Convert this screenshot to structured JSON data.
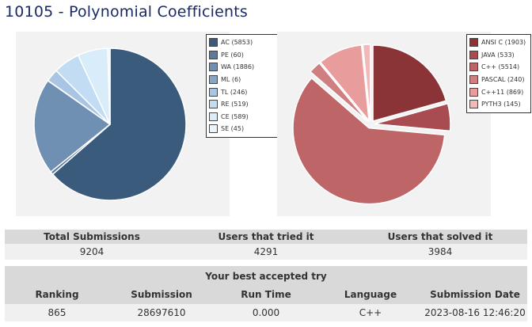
{
  "problem": {
    "title": "10105 - Polynomial Coefficients"
  },
  "chart_data": [
    {
      "type": "pie",
      "categories": [
        "AC (5853)",
        "PE (60)",
        "WA (1886)",
        "ML (6)",
        "TL (246)",
        "RE (519)",
        "CE (589)",
        "SE (45)"
      ],
      "values": [
        5853,
        60,
        1886,
        6,
        246,
        519,
        589,
        45
      ],
      "colors": [
        "#3b5b7d",
        "#5a7a9c",
        "#6f90b2",
        "#88a6c4",
        "#a8c6e4",
        "#c2dcf4",
        "#d8ecfa",
        "#eaf6fc"
      ],
      "legend": "right"
    },
    {
      "type": "pie",
      "categories": [
        "ANSI C (1903)",
        "JAVA (533)",
        "C++ (5514)",
        "PASCAL (240)",
        "C++11 (869)",
        "PYTH3 (145)"
      ],
      "values": [
        1903,
        533,
        5514,
        240,
        869,
        145
      ],
      "colors": [
        "#8b3438",
        "#a84c51",
        "#bd6567",
        "#d07f80",
        "#e89c9c",
        "#f2b9b9"
      ],
      "legend": "right"
    }
  ],
  "stats": {
    "headers": [
      "Total Submissions",
      "Users that tried it",
      "Users that solved it"
    ],
    "values": [
      "9204",
      "4291",
      "3984"
    ]
  },
  "best": {
    "title": "Your best accepted try",
    "headers": [
      "Ranking",
      "Submission",
      "Run Time",
      "Language",
      "Submission Date"
    ],
    "values": [
      "865",
      "28697610",
      "0.000",
      "C++",
      "2023-08-16 12:46:20"
    ]
  }
}
